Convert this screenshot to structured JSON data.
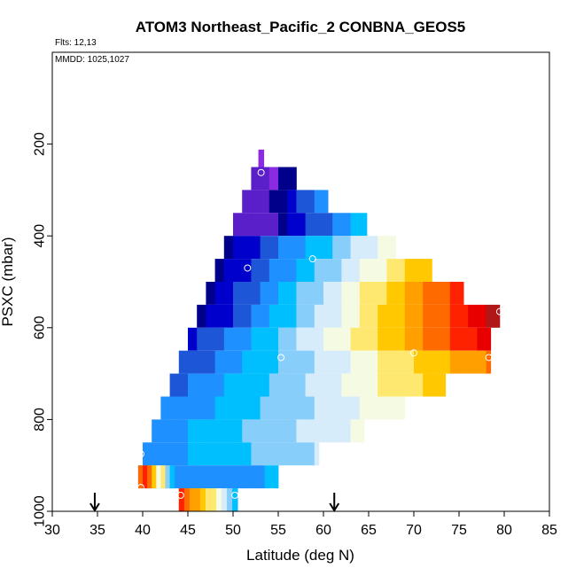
{
  "chart_data": {
    "type": "heatmap",
    "title": "ATOM3 Northeast_Pacific_2 CONBNA_GEOS5",
    "annotations": [
      "Flts: 12,13",
      "MMDD: 1025,1027"
    ],
    "xlabel": "Latitude (deg N)",
    "ylabel": "PSXC (mbar)",
    "xlim": [
      30,
      85
    ],
    "ylim": [
      1000,
      0
    ],
    "x_ticks": [
      "30",
      "35",
      "40",
      "45",
      "50",
      "55",
      "60",
      "65",
      "70",
      "75",
      "80",
      "85"
    ],
    "y_ticks": [
      "200",
      "400",
      "600",
      "800",
      "1000"
    ],
    "color_scale": [
      "#00008b",
      "#0000cd",
      "#1e56d8",
      "#1e90ff",
      "#00bfff",
      "#87cefa",
      "#d7ecfb",
      "#f5fbe3",
      "#ffe870",
      "#ffc800",
      "#ffa000",
      "#ff6a00",
      "#ff2200",
      "#e80000",
      "#b01818"
    ],
    "special_colors": {
      "top": "#8a2be2",
      "top_shade": "#5a1fc8"
    },
    "layers": [
      {
        "p_top": 212,
        "p_bot": 250,
        "x0": 52.8,
        "x1": 53.4,
        "v0": -1,
        "v1": -1
      },
      {
        "p_top": 250,
        "p_bot": 300,
        "x0": 52,
        "x1": 57,
        "v0": -2,
        "v1": 0
      },
      {
        "p_top": 300,
        "p_bot": 350,
        "x0": 51,
        "x1": 60.5,
        "v0": -2,
        "v1": 3.2
      },
      {
        "p_top": 350,
        "p_bot": 400,
        "x0": 50,
        "x1": 64.8,
        "v0": -2,
        "v1": 4.2
      },
      {
        "p_top": 400,
        "p_bot": 450,
        "x0": 49,
        "x1": 68,
        "v0": 0,
        "v1": 7.4
      },
      {
        "p_top": 450,
        "p_bot": 500,
        "x0": 48,
        "x1": 72,
        "v0": 0,
        "v1": 9.6
      },
      {
        "p_top": 500,
        "p_bot": 550,
        "x0": 47,
        "x1": 75.5,
        "v0": 0,
        "v1": 12.3
      },
      {
        "p_top": 550,
        "p_bot": 600,
        "x0": 46,
        "x1": 79.5,
        "v0": 0,
        "v1": 14
      },
      {
        "p_top": 600,
        "p_bot": 650,
        "x0": 45,
        "x1": 78.5,
        "v0": 1,
        "v1": 13.1
      },
      {
        "p_top": 650,
        "p_bot": 700,
        "x0": 44,
        "x1": 78.5,
        "v0": 1.5,
        "v1": 10.7
      },
      {
        "p_top": 700,
        "p_bot": 750,
        "x0": 43,
        "x1": 73.5,
        "v0": 2,
        "v1": 9.2
      },
      {
        "p_top": 750,
        "p_bot": 800,
        "x0": 42,
        "x1": 69,
        "v0": 2.5,
        "v1": 7.4
      },
      {
        "p_top": 800,
        "p_bot": 850,
        "x0": 41,
        "x1": 64.5,
        "v0": 2.8,
        "v1": 6.8
      },
      {
        "p_top": 850,
        "p_bot": 900,
        "x0": 40,
        "x1": 59.5,
        "v0": 2.8,
        "v1": 5.6
      },
      {
        "p_top": 900,
        "p_bot": 950,
        "x0": 39.5,
        "x1": 55,
        "v0": 2.8,
        "v1": 3.6
      },
      {
        "p_top": 950,
        "p_bot": 1000,
        "x0": 44,
        "x1": 50.5,
        "v0": 11,
        "v1": 3.5
      }
    ],
    "strips": [
      {
        "p_top": 900,
        "p_bot": 950,
        "x0": 39.5,
        "x1": 43.5,
        "values": [
          11,
          12.2,
          10.8,
          9,
          7,
          7.6,
          4.8,
          3.8
        ]
      },
      {
        "p_top": 950,
        "p_bot": 1000,
        "x0": 44,
        "x1": 50.5,
        "values": [
          11.5,
          11,
          10,
          9.5,
          9,
          8.2,
          7.5,
          7,
          5.5,
          4.5,
          3.5
        ]
      }
    ],
    "points": [
      {
        "x": 53.1,
        "y": 262
      },
      {
        "x": 51.6,
        "y": 470
      },
      {
        "x": 58.8,
        "y": 450
      },
      {
        "x": 79.5,
        "y": 565
      },
      {
        "x": 55.3,
        "y": 665
      },
      {
        "x": 70,
        "y": 655
      },
      {
        "x": 78.3,
        "y": 665
      },
      {
        "x": 39.8,
        "y": 875
      },
      {
        "x": 39.8,
        "y": 948
      },
      {
        "x": 44.2,
        "y": 965
      },
      {
        "x": 50.2,
        "y": 965
      }
    ],
    "arrows": [
      {
        "x": 34.7
      },
      {
        "x": 61.2
      }
    ]
  }
}
